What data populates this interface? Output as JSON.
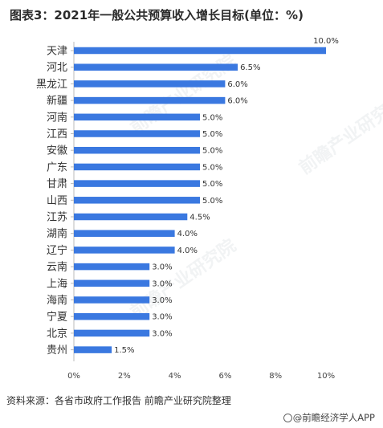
{
  "title": "图表3：2021年一般公共预算收入增长目标(单位：%)",
  "source": "资料来源：各省市政府工作报告 前瞻产业研究院整理",
  "brand": "@前瞻经济学人APP",
  "watermark": "前瞻产业研究院",
  "colors": {
    "bar": "#3a78e0",
    "axis": "#bbbbbb"
  },
  "chart_data": {
    "type": "bar",
    "orientation": "horizontal",
    "categories": [
      "天津",
      "河北",
      "黑龙江",
      "新疆",
      "河南",
      "江西",
      "安徽",
      "广东",
      "甘肃",
      "山西",
      "江苏",
      "湖南",
      "辽宁",
      "云南",
      "上海",
      "海南",
      "宁夏",
      "北京",
      "贵州"
    ],
    "values": [
      10.0,
      6.5,
      6.0,
      6.0,
      5.0,
      5.0,
      5.0,
      5.0,
      5.0,
      5.0,
      4.5,
      4.0,
      4.0,
      3.0,
      3.0,
      3.0,
      3.0,
      3.0,
      1.5
    ],
    "value_labels": [
      "10.0%",
      "6.5%",
      "6.0%",
      "6.0%",
      "5.0%",
      "5.0%",
      "5.0%",
      "5.0%",
      "5.0%",
      "5.0%",
      "4.5%",
      "4.0%",
      "4.0%",
      "3.0%",
      "3.0%",
      "3.0%",
      "3.0%",
      "3.0%",
      "1.5%"
    ],
    "xlim": [
      0,
      10
    ],
    "xticks": [
      0,
      2,
      4,
      6,
      8,
      10
    ],
    "xtick_labels": [
      "0%",
      "2%",
      "4%",
      "6%",
      "8%",
      "10%"
    ],
    "grid": false,
    "legend": "none"
  }
}
